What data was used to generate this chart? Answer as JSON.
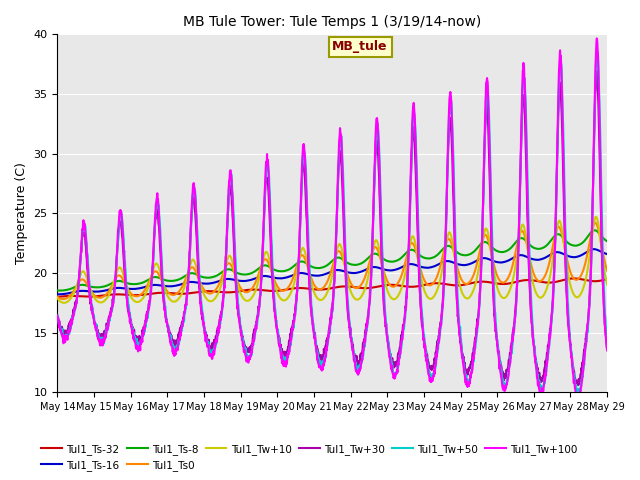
{
  "title": "MB Tule Tower: Tule Temps 1 (3/19/14-now)",
  "ylabel": "Temperature (C)",
  "ylim": [
    10,
    40
  ],
  "xlim": [
    0,
    15
  ],
  "background_color": "#e8e8e8",
  "series": {
    "Tul1_Ts-32": {
      "color": "#cc0000",
      "lw": 1.5
    },
    "Tul1_Ts-16": {
      "color": "#0000cc",
      "lw": 1.5
    },
    "Tul1_Ts-8": {
      "color": "#00aa00",
      "lw": 1.5
    },
    "Tul1_Ts0": {
      "color": "#ff8800",
      "lw": 1.5
    },
    "Tul1_Tw+10": {
      "color": "#cccc00",
      "lw": 1.5
    },
    "Tul1_Tw+30": {
      "color": "#aa00aa",
      "lw": 1.5
    },
    "Tul1_Tw+50": {
      "color": "#00cccc",
      "lw": 1.5
    },
    "Tul1_Tw+100": {
      "color": "#ff00ff",
      "lw": 1.5
    }
  },
  "xtick_labels": [
    "May 14",
    "May 15",
    "May 16",
    "May 17",
    "May 18",
    "May 19",
    "May 20",
    "May 21",
    "May 22",
    "May 23",
    "May 24",
    "May 25",
    "May 26",
    "May 27",
    "May 28",
    "May 29"
  ],
  "xtick_positions": [
    0,
    1,
    2,
    3,
    4,
    5,
    6,
    7,
    8,
    9,
    10,
    11,
    12,
    13,
    14,
    15
  ],
  "ytick_positions": [
    10,
    15,
    20,
    25,
    30,
    35,
    40
  ],
  "label_box": "MB_tule",
  "label_box_color": "#ffffcc",
  "label_box_edge": "#999900",
  "label_box_text_color": "#880000",
  "legend_ncol1": 6,
  "legend_ncol2": 2
}
